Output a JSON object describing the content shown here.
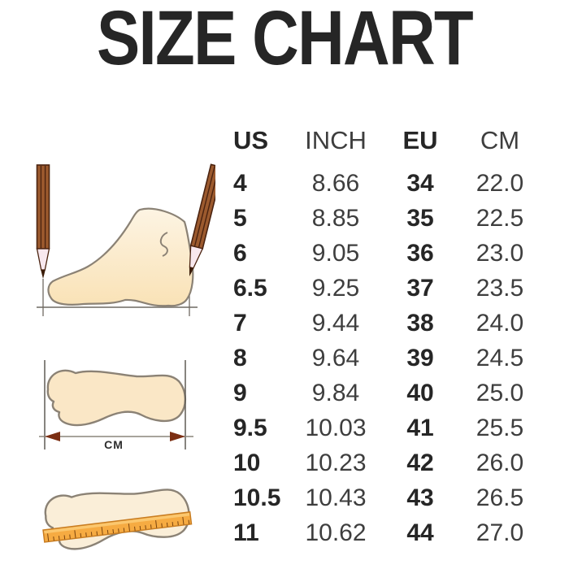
{
  "title": "SIZE CHART",
  "chart_data": {
    "type": "table",
    "title": "SIZE CHART",
    "columns": [
      "US",
      "INCH",
      "EU",
      "CM"
    ],
    "rows": [
      [
        "4",
        "8.66",
        "34",
        "22.0"
      ],
      [
        "5",
        "8.85",
        "35",
        "22.5"
      ],
      [
        "6",
        "9.05",
        "36",
        "23.0"
      ],
      [
        "6.5",
        "9.25",
        "37",
        "23.5"
      ],
      [
        "7",
        "9.44",
        "38",
        "24.0"
      ],
      [
        "8",
        "9.64",
        "39",
        "24.5"
      ],
      [
        "9",
        "9.84",
        "40",
        "25.0"
      ],
      [
        "9.5",
        "10.03",
        "41",
        "25.5"
      ],
      [
        "10",
        "10.23",
        "42",
        "26.0"
      ],
      [
        "10.5",
        "10.43",
        "43",
        "26.5"
      ],
      [
        "11",
        "10.62",
        "44",
        "27.0"
      ]
    ]
  },
  "table": {
    "headers": [
      "US",
      "INCH",
      "EU",
      "CM"
    ],
    "rows": [
      {
        "us": "4",
        "inch": "8.66",
        "eu": "34",
        "cm": "22.0"
      },
      {
        "us": "5",
        "inch": "8.85",
        "eu": "35",
        "cm": "22.5"
      },
      {
        "us": "6",
        "inch": "9.05",
        "eu": "36",
        "cm": "23.0"
      },
      {
        "us": "6.5",
        "inch": "9.25",
        "eu": "37",
        "cm": "23.5"
      },
      {
        "us": "7",
        "inch": "9.44",
        "eu": "38",
        "cm": "24.0"
      },
      {
        "us": "8",
        "inch": "9.64",
        "eu": "39",
        "cm": "24.5"
      },
      {
        "us": "9",
        "inch": "9.84",
        "eu": "40",
        "cm": "25.0"
      },
      {
        "us": "9.5",
        "inch": "10.03",
        "eu": "41",
        "cm": "25.5"
      },
      {
        "us": "10",
        "inch": "10.23",
        "eu": "42",
        "cm": "26.0"
      },
      {
        "us": "10.5",
        "inch": "10.43",
        "eu": "43",
        "cm": "26.5"
      },
      {
        "us": "11",
        "inch": "10.62",
        "eu": "44",
        "cm": "27.0"
      }
    ]
  },
  "illustrations": {
    "cm_label": "CM",
    "icons": [
      "pencil-icon",
      "foot-side-icon",
      "footprint-icon",
      "measure-arrow-icon",
      "ruler-icon"
    ]
  },
  "colors": {
    "background": "#ffffff",
    "text_primary": "#262626",
    "text_secondary": "#3e3e3e",
    "foot_fill": "#fae7c6",
    "foot_fill_light": "#fdf4e3",
    "foot_outline": "#8b8275",
    "pencil_brown": "#9c5a2e",
    "pencil_dark": "#4a2310",
    "pencil_wood": "#f8e8ee",
    "ruler_orange": "#f6ab42",
    "ruler_highlight": "#fbc76e",
    "ruler_border": "#c87d22",
    "ruler_tick": "#7a440f",
    "arrowhead": "#7b2e12",
    "measure_line": "#6f6a62"
  }
}
